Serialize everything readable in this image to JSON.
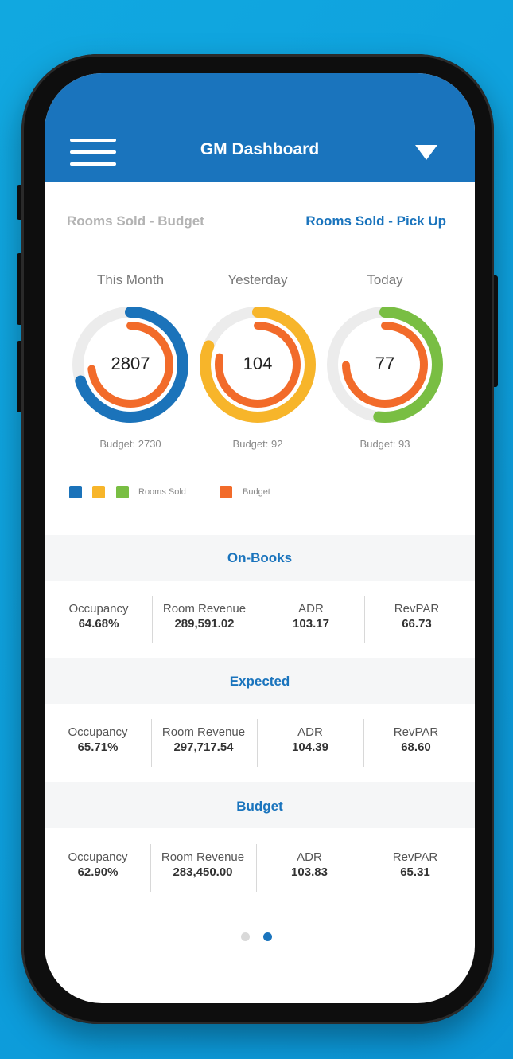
{
  "header": {
    "title": "GM Dashboard"
  },
  "tabs": {
    "left": "Rooms Sold - Budget",
    "right": "Rooms Sold - Pick Up"
  },
  "rings": [
    {
      "label": "This Month",
      "value": "2807",
      "budget": "Budget: 2730",
      "color": "#1b73ba"
    },
    {
      "label": "Yesterday",
      "value": "104",
      "budget": "Budget: 92",
      "color": "#f7b52a"
    },
    {
      "label": "Today",
      "value": "77",
      "budget": "Budget: 93",
      "color": "#79be43"
    }
  ],
  "legend": {
    "rooms_sold": "Rooms Sold",
    "budget": "Budget",
    "budget_color": "#f26b2a"
  },
  "sections": [
    {
      "title": "On-Books",
      "metrics": [
        {
          "label": "Occupancy",
          "value": "64.68%"
        },
        {
          "label": "Room Revenue",
          "value": "289,591.02"
        },
        {
          "label": "ADR",
          "value": "103.17"
        },
        {
          "label": "RevPAR",
          "value": "66.73"
        }
      ]
    },
    {
      "title": "Expected",
      "metrics": [
        {
          "label": "Occupancy",
          "value": "65.71%"
        },
        {
          "label": "Room Revenue",
          "value": "297,717.54"
        },
        {
          "label": "ADR",
          "value": "104.39"
        },
        {
          "label": "RevPAR",
          "value": "68.60"
        }
      ]
    },
    {
      "title": "Budget",
      "metrics": [
        {
          "label": "Occupancy",
          "value": "62.90%"
        },
        {
          "label": "Room Revenue",
          "value": "283,450.00"
        },
        {
          "label": "ADR",
          "value": "103.83"
        },
        {
          "label": "RevPAR",
          "value": "65.31"
        }
      ]
    }
  ],
  "pager": {
    "active_index": 1,
    "count": 2
  }
}
